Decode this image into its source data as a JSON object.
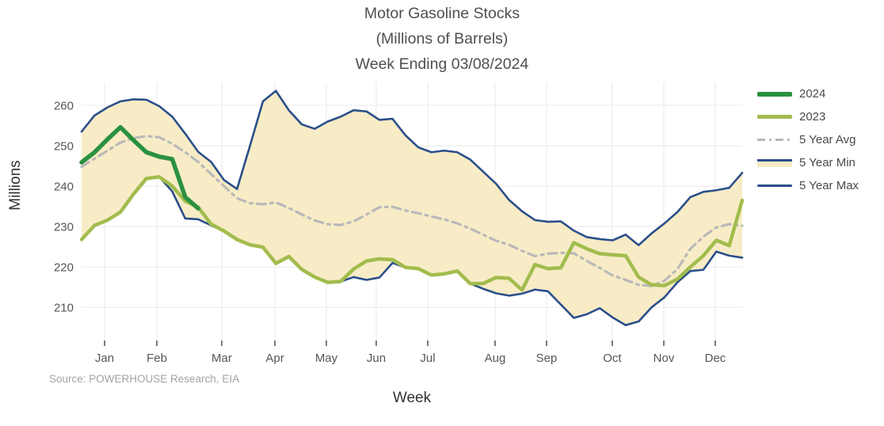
{
  "title": {
    "line1": "Motor Gasoline Stocks",
    "line2": "(Millions of Barrels)",
    "line3": "Week Ending 03/08/2024"
  },
  "y_axis_title": "Millions",
  "x_axis_title": "Week",
  "source_note": "Source: POWERHOUSE Research, EIA",
  "chart_data": {
    "type": "line",
    "title": "Motor Gasoline Stocks (Millions of Barrels) Week Ending 03/08/2024",
    "xlabel": "Week",
    "ylabel": "Millions",
    "weeks": 52,
    "ylim": [
      202.2,
      265.7
    ],
    "y_ticks": [
      210,
      220,
      230,
      240,
      250,
      260
    ],
    "x_ticks": [
      {
        "label": "Jan",
        "f": 0.0348
      },
      {
        "label": "Feb",
        "f": 0.1139
      },
      {
        "label": "Mar",
        "f": 0.2122
      },
      {
        "label": "Apr",
        "f": 0.2926
      },
      {
        "label": "May",
        "f": 0.3705
      },
      {
        "label": "Jun",
        "f": 0.446
      },
      {
        "label": "Jul",
        "f": 0.524
      },
      {
        "label": "Aug",
        "f": 0.6259
      },
      {
        "label": "Sep",
        "f": 0.7038
      },
      {
        "label": "Oct",
        "f": 0.8033
      },
      {
        "label": "Nov",
        "f": 0.8813
      },
      {
        "label": "Dec",
        "f": 0.9592
      }
    ],
    "grid_on": true,
    "grid_color": "#ececec",
    "tick_color": "#565656",
    "band_fill": "#f8ecc6",
    "legend_position": "right",
    "series": [
      {
        "name": "2024",
        "color": "#2b9140",
        "style": "solid",
        "width": 5.5,
        "values": [
          245.9,
          248.4,
          251.6,
          254.6,
          251.4,
          248.4,
          247.3,
          246.7,
          237.3,
          234.5
        ]
      },
      {
        "name": "2023",
        "color": "#a2bc4d",
        "style": "solid",
        "width": 4.5,
        "values": [
          226.8,
          230.3,
          231.6,
          233.6,
          238.0,
          241.9,
          242.3,
          240.0,
          236.3,
          234.8,
          230.6,
          228.9,
          226.8,
          225.5,
          224.9,
          220.9,
          222.6,
          219.4,
          217.5,
          216.2,
          216.4,
          219.5,
          221.5,
          222.0,
          221.8,
          219.9,
          219.6,
          218.0,
          218.3,
          219.0,
          215.9,
          215.9,
          217.4,
          217.2,
          214.3,
          220.6,
          219.6,
          219.8,
          226.0,
          224.5,
          223.3,
          223.0,
          222.8,
          217.5,
          215.6,
          215.4,
          217.0,
          220.0,
          222.8,
          226.6,
          225.3,
          236.5
        ]
      },
      {
        "name": "5 Year Avg",
        "color": "#b9b9b9",
        "style": "dashdot",
        "width": 3.2,
        "values": [
          244.8,
          246.8,
          248.8,
          250.8,
          251.9,
          252.4,
          252.1,
          250.5,
          248.4,
          246.0,
          243.0,
          240.0,
          237.0,
          235.8,
          235.5,
          236.0,
          234.6,
          233.0,
          231.5,
          230.6,
          230.4,
          231.3,
          233.0,
          234.8,
          234.9,
          234.0,
          233.3,
          232.5,
          231.8,
          230.8,
          229.5,
          228.0,
          226.5,
          225.5,
          224.0,
          222.7,
          223.3,
          223.5,
          223.4,
          221.5,
          219.8,
          217.9,
          216.8,
          215.6,
          215.3,
          216.6,
          219.5,
          224.5,
          227.5,
          229.8,
          230.6,
          230.2
        ]
      },
      {
        "name": "5 Year Min",
        "color": "#2a4f8a",
        "style": "solid",
        "width": 2.6,
        "band": "lower",
        "swatch": "band",
        "values": [
          226.8,
          230.3,
          231.6,
          233.6,
          238.0,
          241.9,
          242.3,
          238.7,
          232.0,
          231.8,
          230.3,
          228.9,
          226.8,
          225.4,
          224.8,
          220.9,
          222.4,
          219.4,
          217.5,
          216.2,
          216.4,
          217.5,
          216.8,
          217.4,
          221.0,
          219.9,
          219.6,
          218.0,
          218.3,
          219.0,
          215.9,
          214.6,
          213.5,
          212.9,
          213.4,
          214.4,
          214.0,
          210.7,
          207.4,
          208.3,
          209.8,
          207.5,
          205.6,
          206.5,
          210.0,
          212.5,
          216.2,
          219.0,
          219.3,
          223.8,
          222.8,
          222.3
        ]
      },
      {
        "name": "5 Year Max",
        "color": "#2a4f8a",
        "style": "solid",
        "width": 2.6,
        "band": "upper",
        "values": [
          253.5,
          257.5,
          259.5,
          261.0,
          261.5,
          261.4,
          259.8,
          257.2,
          253.0,
          248.5,
          246.0,
          241.5,
          239.3,
          250.0,
          261.0,
          263.6,
          258.8,
          255.3,
          254.2,
          256.0,
          257.2,
          258.8,
          258.5,
          256.4,
          256.7,
          252.6,
          249.6,
          248.4,
          248.8,
          248.4,
          246.6,
          243.6,
          240.6,
          236.6,
          233.8,
          231.6,
          231.2,
          231.3,
          229.0,
          227.4,
          226.9,
          226.6,
          228.0,
          225.4,
          228.3,
          230.8,
          233.6,
          237.3,
          238.6,
          239.0,
          239.6,
          243.3
        ]
      }
    ]
  }
}
